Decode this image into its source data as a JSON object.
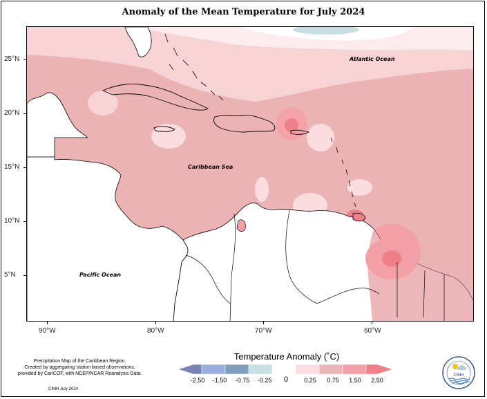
{
  "title": "Anomaly of the Mean Temperature for July 2024",
  "lat_labels": [
    "25°N",
    "20°N",
    "15°N",
    "10°N",
    "5°N"
  ],
  "lon_labels": [
    "90°W",
    "80°W",
    "70°W",
    "60°W"
  ],
  "ocean_labels": {
    "atlantic": "Atlantic Ocean",
    "caribbean": "Caribbean Sea",
    "pacific": "Pacific Ocean"
  },
  "credit": {
    "line1": "Precipitation Map of the Caribbean Region.",
    "line2": "Created by aggregating station based observations,",
    "line3": "provided by CariCOF, with NCEP/NCAR Reanalysis Data.",
    "date": "CIMH July-2024"
  },
  "legend": {
    "title": "Temperature Anomaly (˚C)",
    "ticks": [
      "-2.50",
      "-1.50",
      "-0.75",
      "-0.25",
      "0",
      "0.25",
      "0.75",
      "1.50",
      "2.50"
    ],
    "colors": [
      "#7b83b6",
      "#9aaee0",
      "#7f9fbd",
      "#c8dfe4",
      "#ffffff",
      "#fbdde0",
      "#ecb5b7",
      "#f2a0a5",
      "#ef7f88"
    ]
  },
  "logo": {
    "text": "CIMH"
  }
}
